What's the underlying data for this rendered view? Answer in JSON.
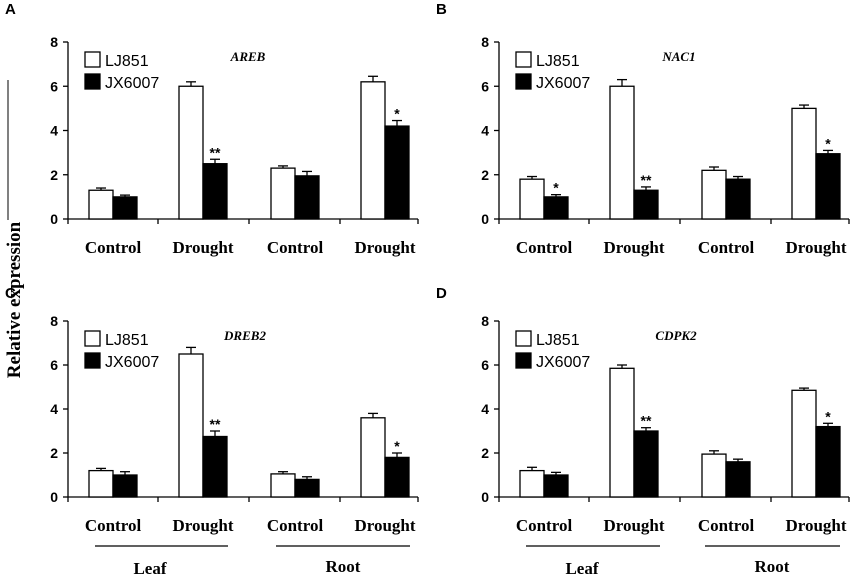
{
  "figure": {
    "y_axis_label": "Relative expression",
    "groups": [
      "Leaf",
      "Root"
    ]
  },
  "colors": {
    "series_open": "#ffffff",
    "series_filled": "#000000",
    "stroke": "#000000"
  },
  "chart_data": [
    {
      "panel": "A",
      "type": "bar",
      "title": "AREB",
      "categories": [
        "Control",
        "Drought",
        "Control",
        "Drought"
      ],
      "ylim": [
        0,
        8
      ],
      "yticks": [
        0,
        2,
        4,
        6,
        8
      ],
      "series": [
        {
          "name": "LJ851",
          "values": [
            1.3,
            6.0,
            2.3,
            6.2
          ],
          "errors": [
            0.1,
            0.2,
            0.1,
            0.25
          ]
        },
        {
          "name": "JX6007",
          "values": [
            1.0,
            2.5,
            1.95,
            4.2
          ],
          "errors": [
            0.08,
            0.2,
            0.2,
            0.25
          ]
        }
      ],
      "significance": [
        "",
        "**",
        "",
        "*"
      ]
    },
    {
      "panel": "B",
      "type": "bar",
      "title": "NAC1",
      "categories": [
        "Control",
        "Drought",
        "Control",
        "Drought"
      ],
      "ylim": [
        0,
        8
      ],
      "yticks": [
        0,
        2,
        4,
        6,
        8
      ],
      "series": [
        {
          "name": "LJ851",
          "values": [
            1.8,
            6.0,
            2.2,
            5.0
          ],
          "errors": [
            0.12,
            0.3,
            0.15,
            0.15
          ]
        },
        {
          "name": "JX6007",
          "values": [
            1.0,
            1.3,
            1.8,
            2.95
          ],
          "errors": [
            0.1,
            0.15,
            0.12,
            0.15
          ]
        }
      ],
      "significance": [
        "*",
        "**",
        "",
        "*"
      ]
    },
    {
      "panel": "C",
      "type": "bar",
      "title": "DREB2",
      "categories": [
        "Control",
        "Drought",
        "Control",
        "Drought"
      ],
      "ylim": [
        0,
        8
      ],
      "yticks": [
        0,
        2,
        4,
        6,
        8
      ],
      "series": [
        {
          "name": "LJ851",
          "values": [
            1.2,
            6.5,
            1.05,
            3.6
          ],
          "errors": [
            0.1,
            0.3,
            0.1,
            0.2
          ]
        },
        {
          "name": "JX6007",
          "values": [
            1.0,
            2.75,
            0.8,
            1.8
          ],
          "errors": [
            0.15,
            0.25,
            0.12,
            0.2
          ]
        }
      ],
      "significance": [
        "",
        "**",
        "",
        "*"
      ]
    },
    {
      "panel": "D",
      "type": "bar",
      "title": "CDPK2",
      "categories": [
        "Control",
        "Drought",
        "Control",
        "Drought"
      ],
      "ylim": [
        0,
        8
      ],
      "yticks": [
        0,
        2,
        4,
        6,
        8
      ],
      "series": [
        {
          "name": "LJ851",
          "values": [
            1.2,
            5.85,
            1.95,
            4.85
          ],
          "errors": [
            0.15,
            0.15,
            0.15,
            0.1
          ]
        },
        {
          "name": "JX6007",
          "values": [
            1.0,
            3.0,
            1.6,
            3.2
          ],
          "errors": [
            0.12,
            0.15,
            0.12,
            0.15
          ]
        }
      ],
      "significance": [
        "",
        "**",
        "",
        "*"
      ]
    }
  ]
}
